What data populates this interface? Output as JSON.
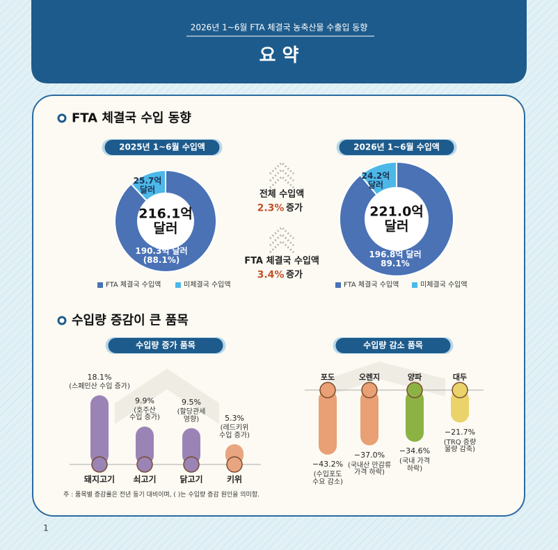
{
  "header": {
    "subtitle": "2026년 1~6월 FTA 체결국 농축산물 수출입 동향",
    "title": "요 약"
  },
  "sections": [
    {
      "heading": "FTA 체결국 수입 동향"
    },
    {
      "heading": "수입량 증감이 큰 품목"
    }
  ],
  "chart_data": [
    {
      "type": "donut",
      "title": "2025년 1~6월 수입액",
      "center_label": "216.1억\n달러",
      "categories": [
        "FTA 체결국 수입액",
        "미체결국 수입액"
      ],
      "values": [
        190.3,
        25.7
      ],
      "value_labels": [
        "190.3억 달러\n(88.1%)",
        "25.7억\n달러"
      ],
      "colors": [
        "#4a72b5",
        "#4cb8e8"
      ]
    },
    {
      "type": "donut",
      "title": "2026년 1~6월 수입액",
      "center_label": "221.0억\n달러",
      "categories": [
        "FTA 체결국 수입액",
        "미체결국 수입액"
      ],
      "values": [
        196.8,
        24.2
      ],
      "value_labels": [
        "196.8억 달러\n89.1%",
        "24.2억\n달러"
      ],
      "colors": [
        "#4a72b5",
        "#4cb8e8"
      ]
    },
    {
      "type": "bar",
      "title": "수입량 증가 품목",
      "categories": [
        "돼지고기",
        "쇠고기",
        "닭고기",
        "키위"
      ],
      "values": [
        18.1,
        9.9,
        9.5,
        5.3
      ],
      "value_labels": [
        "18.1%",
        "9.9%",
        "9.5%",
        "5.3%"
      ],
      "notes": [
        "(스페인산 수입 증가)",
        "(호주산\n수입 증가)",
        "(할당관세\n영향)",
        "(레드키위\n수입 증가)"
      ],
      "colors": [
        "#9a84b6",
        "#9a84b6",
        "#9a84b6",
        "#e9a57f"
      ]
    },
    {
      "type": "bar",
      "title": "수입량 감소 품목",
      "categories": [
        "포도",
        "오렌지",
        "양파",
        "대두"
      ],
      "values": [
        -43.2,
        -37.0,
        -34.6,
        -21.7
      ],
      "value_labels": [
        "−43.2%",
        "−37.0%",
        "−34.6%",
        "−21.7%"
      ],
      "notes": [
        "(수입포도\n수요 감소)",
        "(국내산 만감류\n가격 하락)",
        "(국내 가격\n하락)",
        "(TRQ 증량\n물량 감축)"
      ],
      "colors": [
        "#e8a074",
        "#e8a074",
        "#8db244",
        "#ead36a"
      ]
    }
  ],
  "comparison": [
    {
      "label": "전체 수입액",
      "change": "2.3%",
      "direction": "증가"
    },
    {
      "label": "FTA 체결국 수입액",
      "change": "3.4%",
      "direction": "증가"
    }
  ],
  "footnote": "주 : 품목별 증감률은 전년 동기 대비이며, ( )는 수입량 증감 원인을 의미함.",
  "page_number": "1"
}
